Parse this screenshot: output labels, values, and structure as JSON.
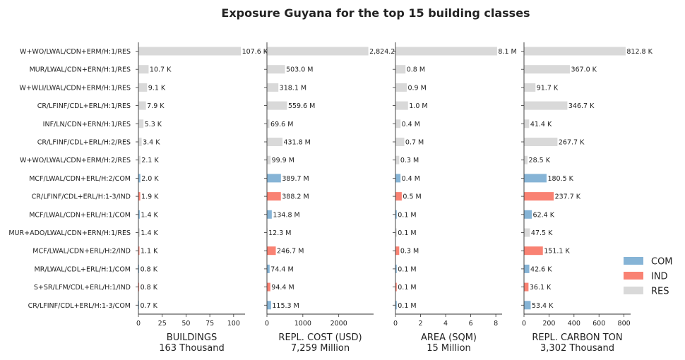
{
  "chart_data": {
    "type": "bar",
    "orientation": "horizontal",
    "title": "Exposure Guyana for the top 15 building classes",
    "categories": [
      "W+WO/LWAL/CDN+ERM/H:1/RES",
      "MUR/LWAL/CDN+ERN/H:1/RES",
      "W+WLI/LWAL/CDN+ERM/H:1/RES",
      "CR/LFINF/CDL+ERL/H:1/RES",
      "INF/LN/CDN+ERN/H:1/RES",
      "CR/LFINF/CDL+ERL/H:2/RES",
      "W+WO/LWAL/CDN+ERM/H:2/RES",
      "MCF/LWAL/CDN+ERL/H:2/COM",
      "CR/LFINF/CDL+ERL/H:1-3/IND",
      "MCF/LWAL/CDN+ERL/H:1/COM",
      "MUR+ADO/LWAL/CDN+ERN/H:1/RES",
      "MCF/LWAL/CDN+ERL/H:2/IND",
      "MR/LWAL/CDL+ERL/H:1/COM",
      "S+SR/LFM/CDL+ERL/H:1/IND",
      "CR/LFINF/CDL+ERL/H:1-3/COM"
    ],
    "occupancy": [
      "RES",
      "RES",
      "RES",
      "RES",
      "RES",
      "RES",
      "RES",
      "COM",
      "IND",
      "COM",
      "RES",
      "IND",
      "COM",
      "IND",
      "COM"
    ],
    "colors": {
      "COM": "#86b4d6",
      "IND": "#f98273",
      "RES": "#d9d9d9"
    },
    "legend": {
      "position": "right",
      "entries": [
        "COM",
        "IND",
        "RES"
      ]
    },
    "panels": [
      {
        "name": "buildings",
        "xlabel": "BUILDINGS",
        "total_label": "163 Thousand",
        "xlim": [
          0,
          112
        ],
        "ticks": [
          0,
          25,
          50,
          75,
          100
        ],
        "tick_labels": [
          "0",
          "25",
          "50",
          "75",
          "100"
        ],
        "values": [
          107.6,
          10.7,
          9.1,
          7.9,
          5.3,
          3.4,
          2.1,
          2.0,
          1.9,
          1.4,
          1.4,
          1.1,
          0.8,
          0.8,
          0.7
        ],
        "labels": [
          "107.6 K",
          "10.7 K",
          "9.1 K",
          "7.9 K",
          "5.3 K",
          "3.4 K",
          "2.1 K",
          "2.0 K",
          "1.9 K",
          "1.4 K",
          "1.4 K",
          "1.1 K",
          "0.8 K",
          "0.8 K",
          "0.7 K"
        ]
      },
      {
        "name": "replacement-cost",
        "xlabel": "REPL. COST (USD)",
        "total_label": "7,259 Million",
        "xlim": [
          0,
          2970
        ],
        "ticks": [
          0,
          1000,
          2000
        ],
        "tick_labels": [
          "0",
          "1000",
          "2000"
        ],
        "values": [
          2824.2,
          503.0,
          318.1,
          559.6,
          69.6,
          431.8,
          99.9,
          389.7,
          388.2,
          134.8,
          12.3,
          246.7,
          74.4,
          94.4,
          115.3
        ],
        "labels": [
          "2,824.2",
          "503.0 M",
          "318.1 M",
          "559.6 M",
          "69.6 M",
          "431.8 M",
          "99.9 M",
          "389.7 M",
          "388.2 M",
          "134.8 M",
          "12.3 M",
          "246.7 M",
          "74.4 M",
          "94.4 M",
          "115.3 M"
        ]
      },
      {
        "name": "area",
        "xlabel": "AREA (SQM)",
        "total_label": "15 Million",
        "xlim": [
          0,
          8.5
        ],
        "ticks": [
          0,
          2,
          4,
          6,
          8
        ],
        "tick_labels": [
          "0",
          "2",
          "4",
          "6",
          "8"
        ],
        "values": [
          8.1,
          0.8,
          0.9,
          1.0,
          0.4,
          0.7,
          0.3,
          0.4,
          0.5,
          0.1,
          0.1,
          0.3,
          0.1,
          0.1,
          0.1
        ],
        "labels": [
          "8.1 M",
          "0.8 M",
          "0.9 M",
          "1.0 M",
          "0.4 M",
          "0.7 M",
          "0.3 M",
          "0.4 M",
          "0.5 M",
          "0.1 M",
          "0.1 M",
          "0.3 M",
          "0.1 M",
          "0.1 M",
          "0.1 M"
        ]
      },
      {
        "name": "carbon",
        "xlabel": "REPL. CARBON TON",
        "total_label": "3,302 Thousand",
        "xlim": [
          0,
          853
        ],
        "ticks": [
          0,
          200,
          400,
          600,
          800
        ],
        "tick_labels": [
          "0",
          "200",
          "400",
          "600",
          "800"
        ],
        "values": [
          812.8,
          367.0,
          91.7,
          346.7,
          41.4,
          267.7,
          28.5,
          180.5,
          237.7,
          62.4,
          47.5,
          151.1,
          42.6,
          36.1,
          53.4
        ],
        "labels": [
          "812.8 K",
          "367.0 K",
          "91.7 K",
          "346.7 K",
          "41.4 K",
          "267.7 K",
          "28.5 K",
          "180.5 K",
          "237.7 K",
          "62.4 K",
          "47.5 K",
          "151.1 K",
          "42.6 K",
          "36.1 K",
          "53.4 K"
        ]
      }
    ]
  }
}
